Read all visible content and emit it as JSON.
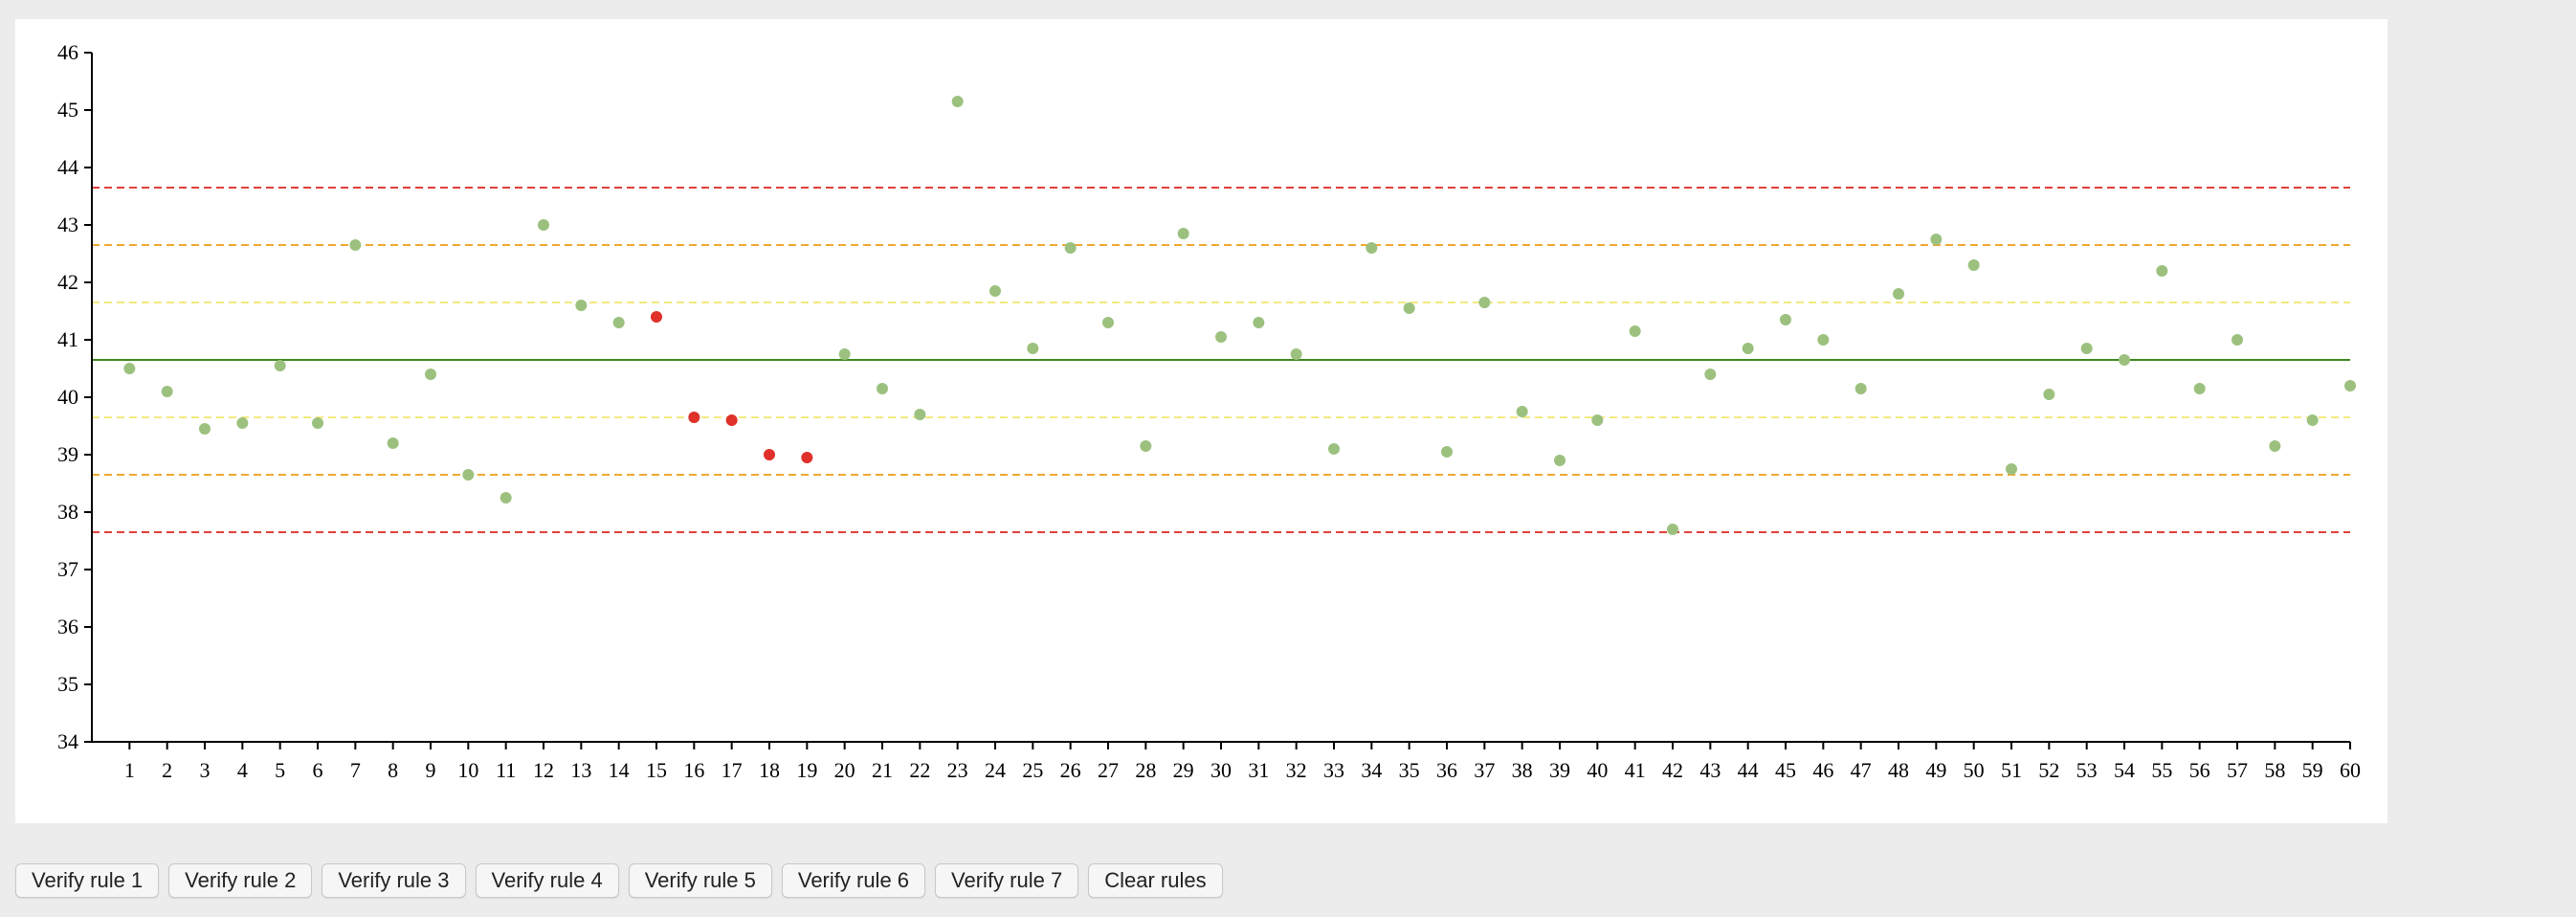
{
  "chart_data": {
    "type": "scatter",
    "title": "",
    "xlabel": "",
    "ylabel": "",
    "x": [
      1,
      2,
      3,
      4,
      5,
      6,
      7,
      8,
      9,
      10,
      11,
      12,
      13,
      14,
      15,
      16,
      17,
      18,
      19,
      20,
      21,
      22,
      23,
      24,
      25,
      26,
      27,
      28,
      29,
      30,
      31,
      32,
      33,
      34,
      35,
      36,
      37,
      38,
      39,
      40,
      41,
      42,
      43,
      44,
      45,
      46,
      47,
      48,
      49,
      50,
      51,
      52,
      53,
      54,
      55,
      56,
      57,
      58,
      59,
      60
    ],
    "y": [
      40.5,
      40.1,
      39.45,
      39.55,
      40.55,
      39.55,
      42.65,
      39.2,
      40.4,
      38.65,
      38.25,
      43.0,
      41.6,
      41.3,
      41.4,
      39.65,
      39.6,
      39.0,
      38.95,
      40.75,
      40.15,
      39.7,
      45.15,
      41.85,
      40.85,
      42.6,
      41.3,
      39.15,
      42.85,
      41.05,
      41.3,
      40.75,
      39.1,
      42.6,
      41.55,
      39.05,
      41.65,
      39.75,
      38.9,
      39.6,
      41.15,
      37.7,
      40.4,
      40.85,
      41.35,
      41.0,
      40.15,
      41.8,
      42.75,
      42.3,
      38.75,
      40.05,
      40.85,
      40.65,
      42.2,
      40.15,
      41.0,
      39.15,
      39.6,
      40.2
    ],
    "flagged_points": [
      15,
      16,
      17,
      18,
      19
    ],
    "xlim": [
      0,
      60
    ],
    "ylim": [
      34,
      46
    ],
    "yticks": [
      34,
      35,
      36,
      37,
      38,
      39,
      40,
      41,
      42,
      43,
      44,
      45,
      46
    ],
    "xticks": [
      1,
      2,
      3,
      4,
      5,
      6,
      7,
      8,
      9,
      10,
      11,
      12,
      13,
      14,
      15,
      16,
      17,
      18,
      19,
      20,
      21,
      22,
      23,
      24,
      25,
      26,
      27,
      28,
      29,
      30,
      31,
      32,
      33,
      34,
      35,
      36,
      37,
      38,
      39,
      40,
      41,
      42,
      43,
      44,
      45,
      46,
      47,
      48,
      49,
      50,
      51,
      52,
      53,
      54,
      55,
      56,
      57,
      58,
      59,
      60
    ],
    "center_line": 40.65,
    "limit_lines": [
      {
        "value": 43.65,
        "color": "#e0403a",
        "style": "dashed"
      },
      {
        "value": 42.65,
        "color": "#f0a830",
        "style": "dashed"
      },
      {
        "value": 41.65,
        "color": "#f3ea80",
        "style": "dashed"
      },
      {
        "value": 39.65,
        "color": "#f3ea80",
        "style": "dashed"
      },
      {
        "value": 38.65,
        "color": "#f0a830",
        "style": "dashed"
      },
      {
        "value": 37.65,
        "color": "#e0403a",
        "style": "dashed"
      }
    ],
    "colors": {
      "point": "#9cc17f",
      "flagged_point": "#e0302a",
      "center_line": "#3d8a1e",
      "axis": "#000000"
    },
    "grid": false
  },
  "buttons": [
    {
      "label": "Verify rule 1"
    },
    {
      "label": "Verify rule 2"
    },
    {
      "label": "Verify rule 3"
    },
    {
      "label": "Verify rule 4"
    },
    {
      "label": "Verify rule 5"
    },
    {
      "label": "Verify rule 6"
    },
    {
      "label": "Verify rule 7"
    },
    {
      "label": "Clear rules"
    }
  ]
}
